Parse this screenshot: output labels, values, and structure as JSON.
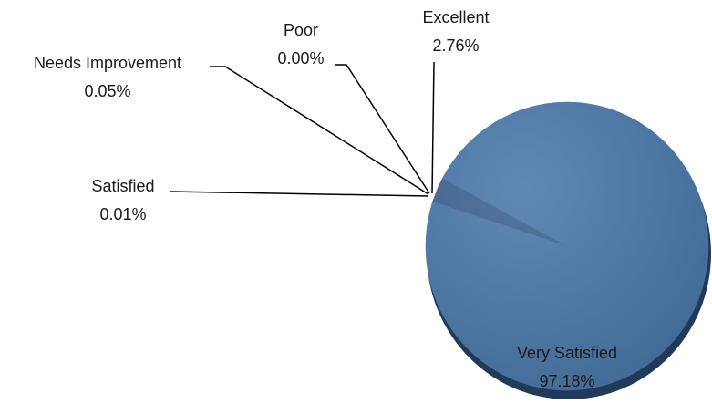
{
  "chart_data": {
    "type": "pie",
    "categories": [
      "Satisfied",
      "Needs Improvement",
      "Poor",
      "Excellent",
      "Very Satisfied"
    ],
    "values": [
      0.01,
      0.05,
      0.0,
      2.76,
      97.18
    ],
    "value_labels": [
      "0.01%",
      "0.05%",
      "0.00%",
      "2.76%",
      "97.18%"
    ],
    "colors": [
      "#4a74a5",
      "#4a74a5",
      "#4a74a5",
      "#3e6392",
      "#4b78aa"
    ]
  }
}
